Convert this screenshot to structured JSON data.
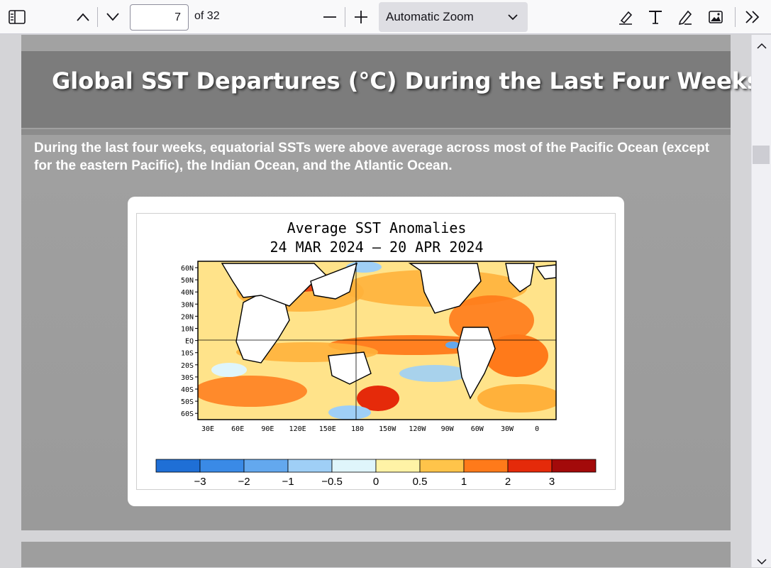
{
  "toolbar": {
    "page_number": "7",
    "page_count": "of 32",
    "zoom_label": "Automatic Zoom",
    "icons": [
      "sidebar-toggle-icon",
      "previous-page-icon",
      "next-page-icon",
      "zoom-out-icon",
      "zoom-in-icon",
      "highlight-icon",
      "text-icon",
      "draw-icon",
      "image-icon",
      "tools-icon"
    ]
  },
  "slide": {
    "title": "Global SST Departures (°C) During the Last Four Weeks",
    "body": "During the last four weeks, equatorial SSTs were above average across most of the Pacific Ocean (except for the eastern Pacific), the Indian Ocean, and the Atlantic Ocean.",
    "figure": {
      "title_line1": "Average SST Anomalies",
      "title_line2": "24 MAR 2024 – 20 APR 2024",
      "lat_labels": [
        "60N",
        "50N",
        "40N",
        "30N",
        "20N",
        "10N",
        "EQ",
        "10S",
        "20S",
        "30S",
        "40S",
        "50S",
        "60S"
      ],
      "lon_labels": [
        "30E",
        "60E",
        "90E",
        "120E",
        "150E",
        "180",
        "150W",
        "120W",
        "90W",
        "60W",
        "30W",
        "0"
      ],
      "colorbar_labels": [
        "−3",
        "−2",
        "−1",
        "−0.5",
        "0",
        "0.5",
        "1",
        "2",
        "3"
      ],
      "colorbar_colors": [
        "#1f6fd6",
        "#3a8ae6",
        "#63a8ee",
        "#9fcff6",
        "#dff5fb",
        "#fff3a6",
        "#ffc44a",
        "#ff7a1a",
        "#e52a0a",
        "#a30a0a"
      ]
    }
  }
}
